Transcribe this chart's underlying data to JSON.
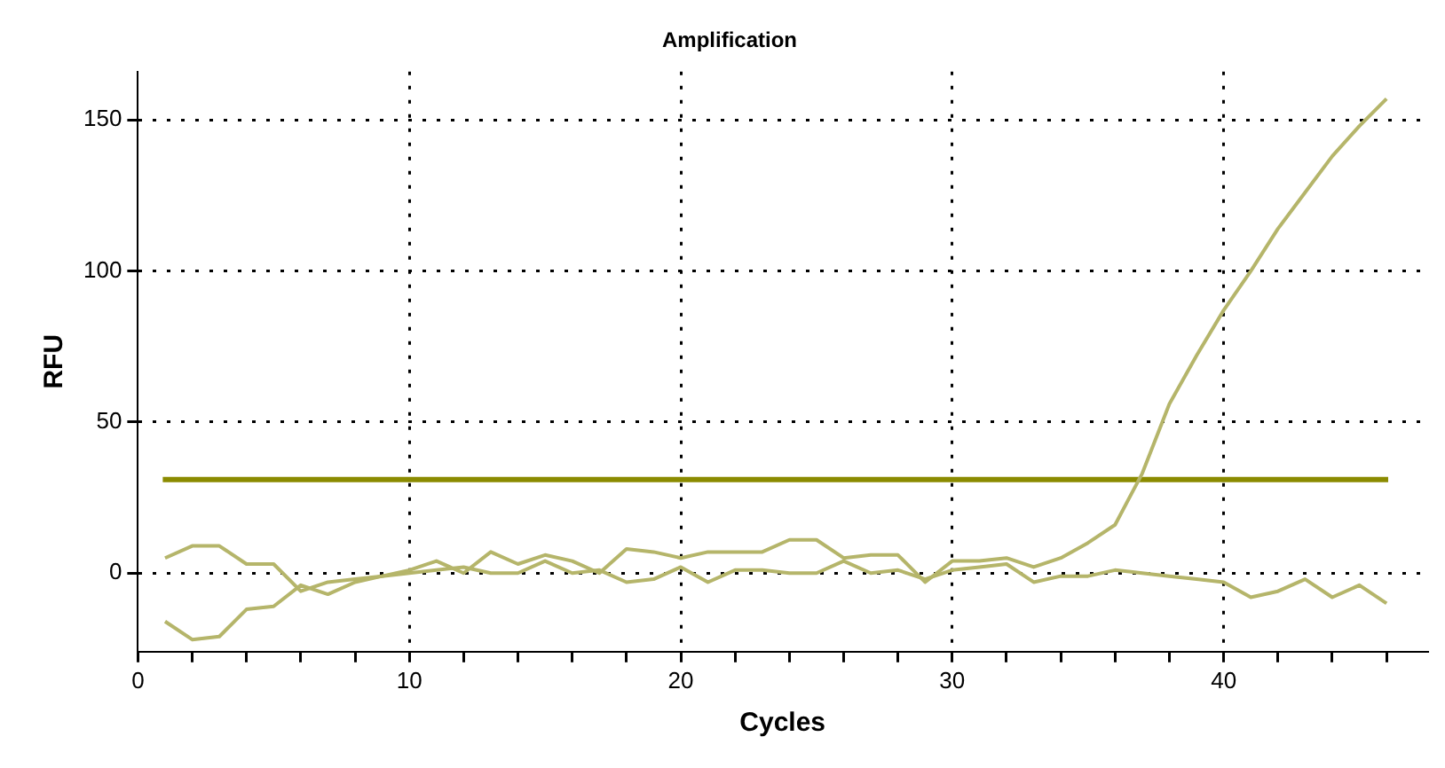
{
  "chart_data": {
    "type": "line",
    "title": "Amplification",
    "xlabel": "Cycles",
    "ylabel": "RFU",
    "x": [
      1,
      2,
      3,
      4,
      5,
      6,
      7,
      8,
      9,
      10,
      11,
      12,
      13,
      14,
      15,
      16,
      17,
      18,
      19,
      20,
      21,
      22,
      23,
      24,
      25,
      26,
      27,
      28,
      29,
      30,
      31,
      32,
      33,
      34,
      35,
      36,
      37,
      38,
      39,
      40,
      41,
      42,
      43,
      44,
      45,
      46
    ],
    "series": [
      {
        "color": "#b5b56a",
        "values": [
          5,
          9,
          9,
          3,
          3,
          -6,
          -3,
          -2,
          -1,
          1,
          4,
          0,
          7,
          3,
          6,
          4,
          0,
          8,
          7,
          5,
          7,
          7,
          7,
          11,
          11,
          5,
          6,
          6,
          -3,
          4,
          4,
          5,
          2,
          5,
          10,
          16,
          33,
          56,
          72,
          87,
          100,
          114,
          126,
          138,
          148,
          157
        ]
      },
      {
        "color": "#b5b56a",
        "values": [
          -16,
          -22,
          -21,
          -12,
          -11,
          -4,
          -7,
          -3,
          -1,
          0,
          1,
          2,
          0,
          0,
          4,
          0,
          1,
          -3,
          -2,
          2,
          -3,
          1,
          1,
          0,
          0,
          4,
          0,
          1,
          -2,
          1,
          2,
          3,
          -3,
          -1,
          -1,
          1,
          0,
          -1,
          -2,
          -3,
          -8,
          -6,
          -2,
          -8,
          -4,
          -10
        ]
      }
    ],
    "ref_lines": [
      {
        "axis": "y",
        "value": 31,
        "color": "#8b8b00"
      }
    ],
    "xlim": [
      0,
      47.5
    ],
    "xticks": [
      0,
      {
        "value": 2,
        "label": null
      },
      {
        "value": 4,
        "label": null
      },
      {
        "value": 6,
        "label": null
      },
      {
        "value": 8,
        "label": null
      },
      10,
      {
        "value": 12,
        "label": null
      },
      {
        "value": 14,
        "label": null
      },
      {
        "value": 16,
        "label": null
      },
      {
        "value": 18,
        "label": null
      },
      20,
      {
        "value": 22,
        "label": null
      },
      {
        "value": 24,
        "label": null
      },
      {
        "value": 26,
        "label": null
      },
      {
        "value": 28,
        "label": null
      },
      30,
      {
        "value": 32,
        "label": null
      },
      {
        "value": 34,
        "label": null
      },
      {
        "value": 36,
        "label": null
      },
      {
        "value": 38,
        "label": null
      },
      40,
      {
        "value": 42,
        "label": null
      },
      {
        "value": 44,
        "label": null
      },
      {
        "value": 46,
        "label": null
      }
    ],
    "ylim": [
      -26,
      166
    ],
    "yticks": [
      0,
      50,
      100,
      150
    ],
    "grid": true,
    "legend": false,
    "marker": "none",
    "line_style": "solid"
  }
}
